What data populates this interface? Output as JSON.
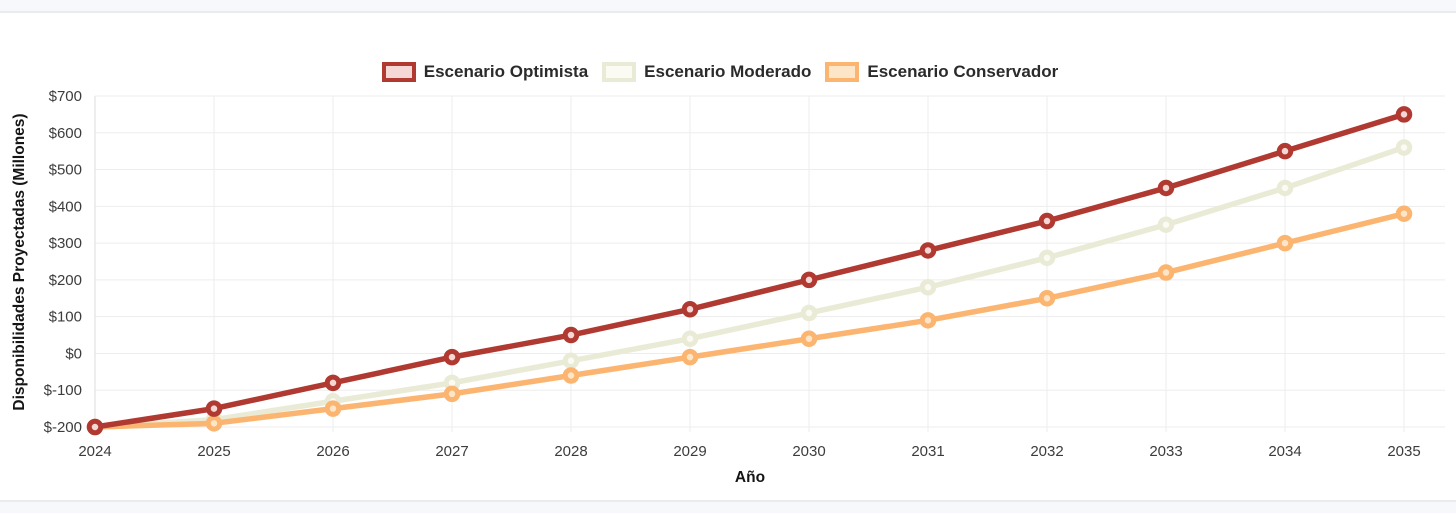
{
  "page": {
    "background": "#ffffff",
    "top_strip_color": "#f7f8fc",
    "strip_border_color": "#e9ebf1"
  },
  "chart_data": {
    "type": "line",
    "title": "",
    "xlabel": "Año",
    "ylabel": "Disponibilidades Proyectadas (Millones)",
    "x_tick_labels": [
      "2024",
      "2025",
      "2026",
      "2027",
      "2028",
      "2029",
      "2030",
      "2031",
      "2032",
      "2033",
      "2034",
      "2035"
    ],
    "y_tick_labels": [
      "$700",
      "$600",
      "$500",
      "$400",
      "$300",
      "$200",
      "$100",
      "$0",
      "$-100",
      "$-200"
    ],
    "y_tick_values": [
      700,
      600,
      500,
      400,
      300,
      200,
      100,
      0,
      -100,
      -200
    ],
    "ylim": [
      -200,
      700
    ],
    "grid": true,
    "grid_color": "#ededed",
    "axis_line_color": "#dedede",
    "legend_position": "top",
    "draw_order": [
      1,
      2,
      0
    ],
    "series": [
      {
        "name": "Escenario Optimista",
        "color": "#b03a31",
        "fill": "#f5d8d5",
        "values": [
          -200,
          -150,
          -80,
          -10,
          50,
          120,
          200,
          280,
          360,
          450,
          550,
          650
        ]
      },
      {
        "name": "Escenario Moderado",
        "color": "#eaebd6",
        "fill": "#fbfbf3",
        "values": [
          -200,
          -180,
          -130,
          -80,
          -20,
          40,
          110,
          180,
          260,
          350,
          450,
          560
        ]
      },
      {
        "name": "Escenario Conservador",
        "color": "#fbb570",
        "fill": "#fde5c8",
        "values": [
          -200,
          -190,
          -150,
          -110,
          -60,
          -10,
          40,
          90,
          150,
          220,
          300,
          380
        ]
      }
    ]
  }
}
